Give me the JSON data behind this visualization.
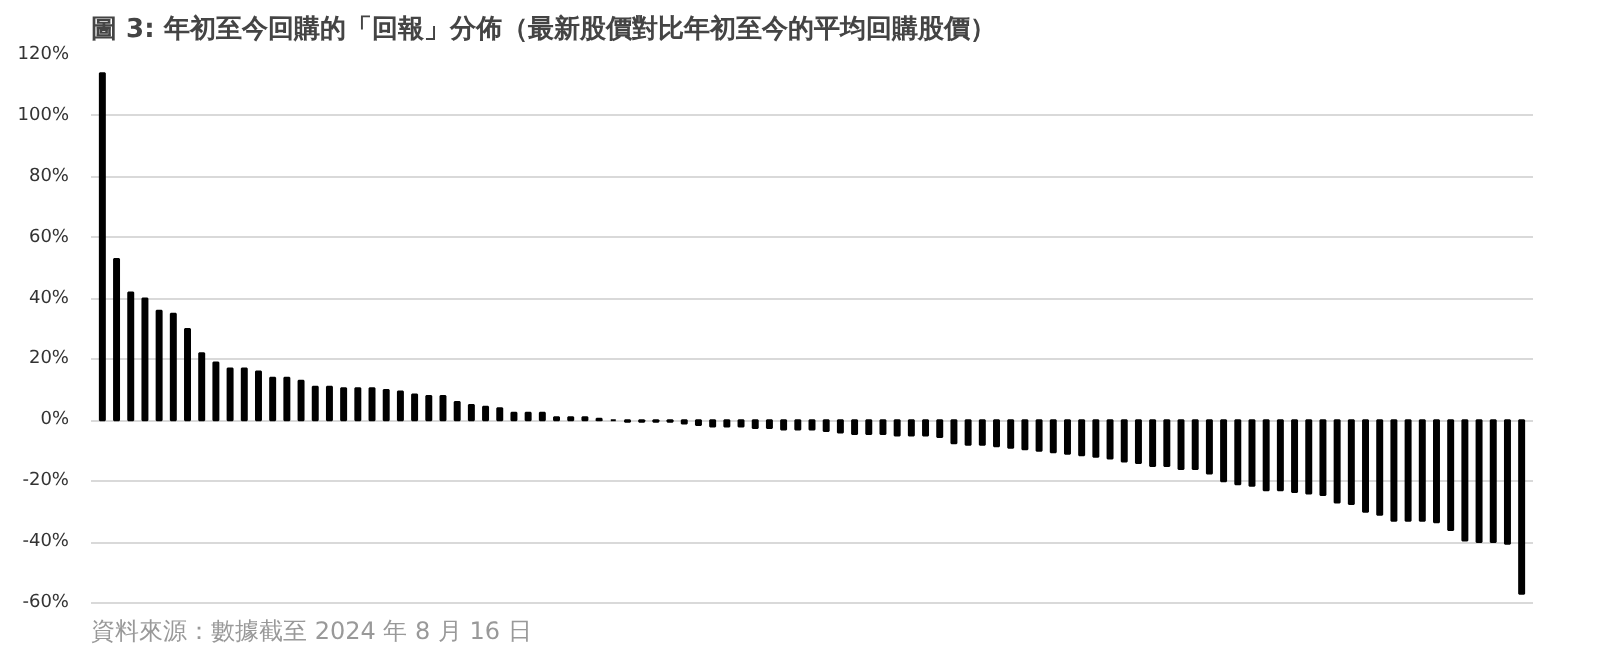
{
  "chart_data": {
    "type": "bar",
    "title": "圖 3:  年初至今回購的「回報」分佈（最新股價對比年初至今的平均回購股價）",
    "annotations": [
      "資料來源：數據截至 2024 年 8 月 16 日"
    ],
    "categories": [
      null,
      null,
      null,
      null,
      null,
      null,
      null,
      null,
      null,
      null,
      null,
      null,
      null,
      null,
      null,
      null,
      null,
      null,
      null,
      null,
      null,
      null,
      null,
      null,
      null,
      null,
      null,
      null,
      null,
      null,
      null,
      null,
      null,
      null,
      null,
      null,
      null,
      null,
      null,
      null,
      null,
      null,
      null,
      null,
      null,
      null,
      null,
      null,
      null,
      null,
      null,
      null,
      null,
      null,
      null,
      null,
      null,
      null,
      null,
      null,
      null,
      null,
      null,
      null,
      null,
      null,
      null,
      null,
      null,
      null,
      null,
      null,
      null,
      null,
      null,
      null,
      null,
      null,
      null,
      null,
      null,
      null,
      null,
      null,
      null,
      null,
      null,
      null,
      null,
      null,
      null,
      null,
      null,
      null,
      null,
      null,
      null,
      null,
      null,
      null,
      null
    ],
    "values": [
      114,
      53,
      42,
      40,
      36,
      35,
      30,
      22,
      19,
      17,
      17,
      16,
      14,
      14,
      13,
      11,
      11,
      10.5,
      10.5,
      10.5,
      10,
      9.5,
      8.5,
      8,
      8,
      6,
      5,
      4.5,
      4,
      2.5,
      2.5,
      2.5,
      1,
      1,
      1,
      0.5,
      0,
      -0.5,
      -0.5,
      -0.5,
      -0.5,
      -1,
      -1.5,
      -2,
      -2,
      -2,
      -2.5,
      -2.5,
      -3,
      -3,
      -3,
      -3.5,
      -4,
      -4.5,
      -4.5,
      -4.5,
      -5,
      -5,
      -5,
      -5.5,
      -7.5,
      -8,
      -8,
      -8.5,
      -9,
      -9.5,
      -10,
      -10.5,
      -11,
      -11.5,
      -12,
      -12.5,
      -13.5,
      -14,
      -15,
      -15,
      -16,
      -16,
      -17.5,
      -20,
      -21,
      -21.5,
      -23,
      -23,
      -23.5,
      -24,
      -24.5,
      -27,
      -27.5,
      -30,
      -31,
      -33,
      -33,
      -33,
      -33.5,
      -36,
      -39.5,
      -40,
      -40,
      -40.5,
      -57
    ],
    "color": "#000000",
    "ylim": [
      -60,
      120
    ],
    "yticks": [
      {
        "value": -60,
        "label": "-60%"
      },
      {
        "value": -40,
        "label": "-40%"
      },
      {
        "value": -20,
        "label": "-20%"
      },
      {
        "value": 0,
        "label": "0%"
      },
      {
        "value": 20,
        "label": "20%"
      },
      {
        "value": 40,
        "label": "40%"
      },
      {
        "value": 60,
        "label": "60%"
      },
      {
        "value": 80,
        "label": "80%"
      },
      {
        "value": 100,
        "label": "100%"
      },
      {
        "value": 120,
        "label": "120%"
      }
    ],
    "grid": "y"
  }
}
